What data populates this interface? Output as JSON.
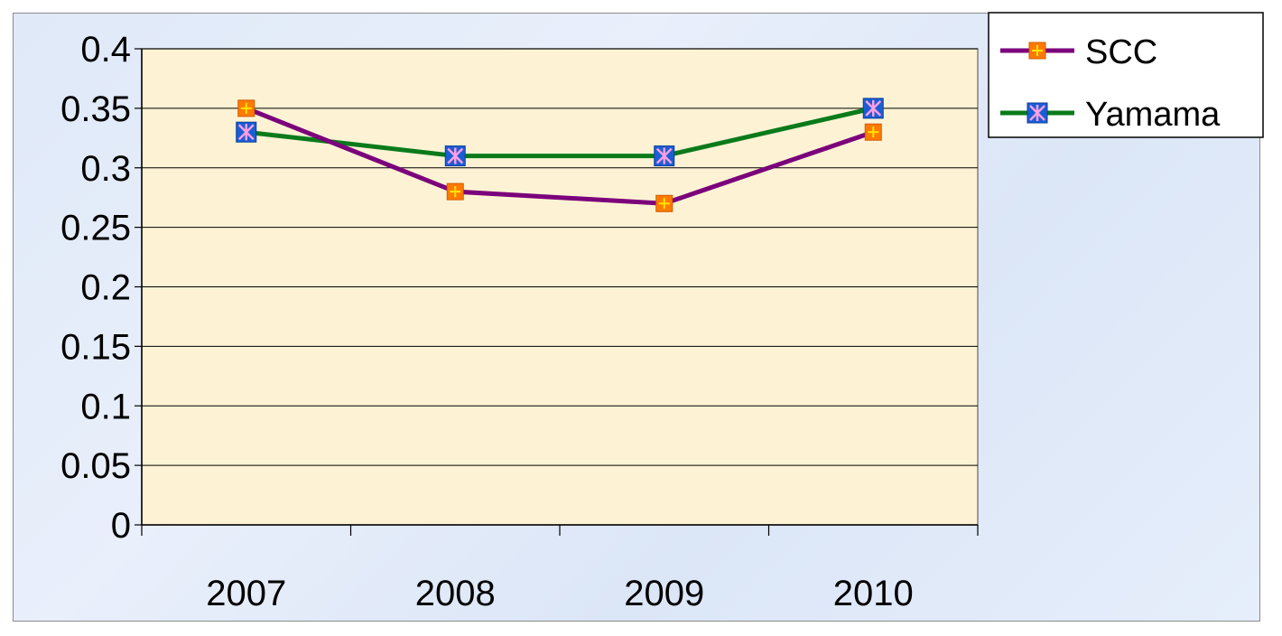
{
  "chart_data": {
    "type": "line",
    "categories": [
      "2007",
      "2008",
      "2009",
      "2010"
    ],
    "series": [
      {
        "name": "SCC",
        "values": [
          0.35,
          0.28,
          0.27,
          0.33
        ],
        "color": "#7b007b",
        "marker": "orange-square-plus"
      },
      {
        "name": "Yamama",
        "values": [
          0.33,
          0.31,
          0.31,
          0.35
        ],
        "color": "#0a7a1a",
        "marker": "blue-square-asterisk"
      }
    ],
    "yticks": [
      "0",
      "0.05",
      "0.1",
      "0.15",
      "0.2",
      "0.25",
      "0.3",
      "0.35",
      "0.4"
    ],
    "ylim": [
      0,
      0.4
    ],
    "grid": true,
    "legend": "top-right",
    "plot_background": "#fdf3d4"
  }
}
